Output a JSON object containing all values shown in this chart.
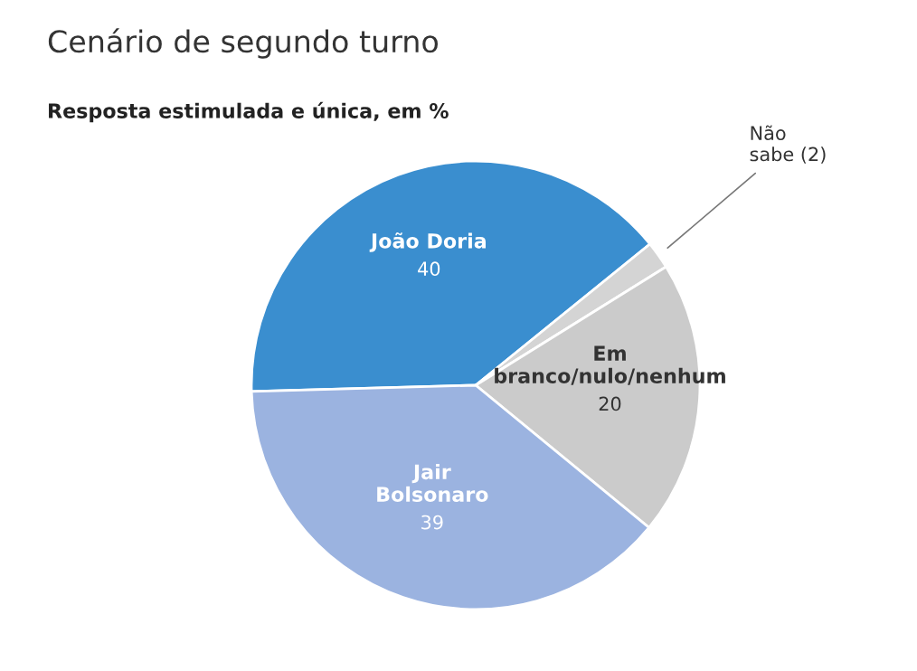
{
  "chart_data": {
    "type": "pie",
    "title": "Cenário de segundo turno",
    "subtitle": "Resposta estimulada e única, em %",
    "categories": [
      "João Doria",
      "Não\nsabe",
      "Em\nbranco/nulo/nenhum",
      "Jair\nBolsonaro"
    ],
    "values": [
      40,
      2,
      20,
      39
    ],
    "value_labels": [
      "40",
      "(2)",
      "20",
      "39"
    ],
    "colors": [
      "#3a8ecf",
      "#d4d4d4",
      "#cbcbcb",
      "#9bb3e0"
    ],
    "legend": false
  }
}
